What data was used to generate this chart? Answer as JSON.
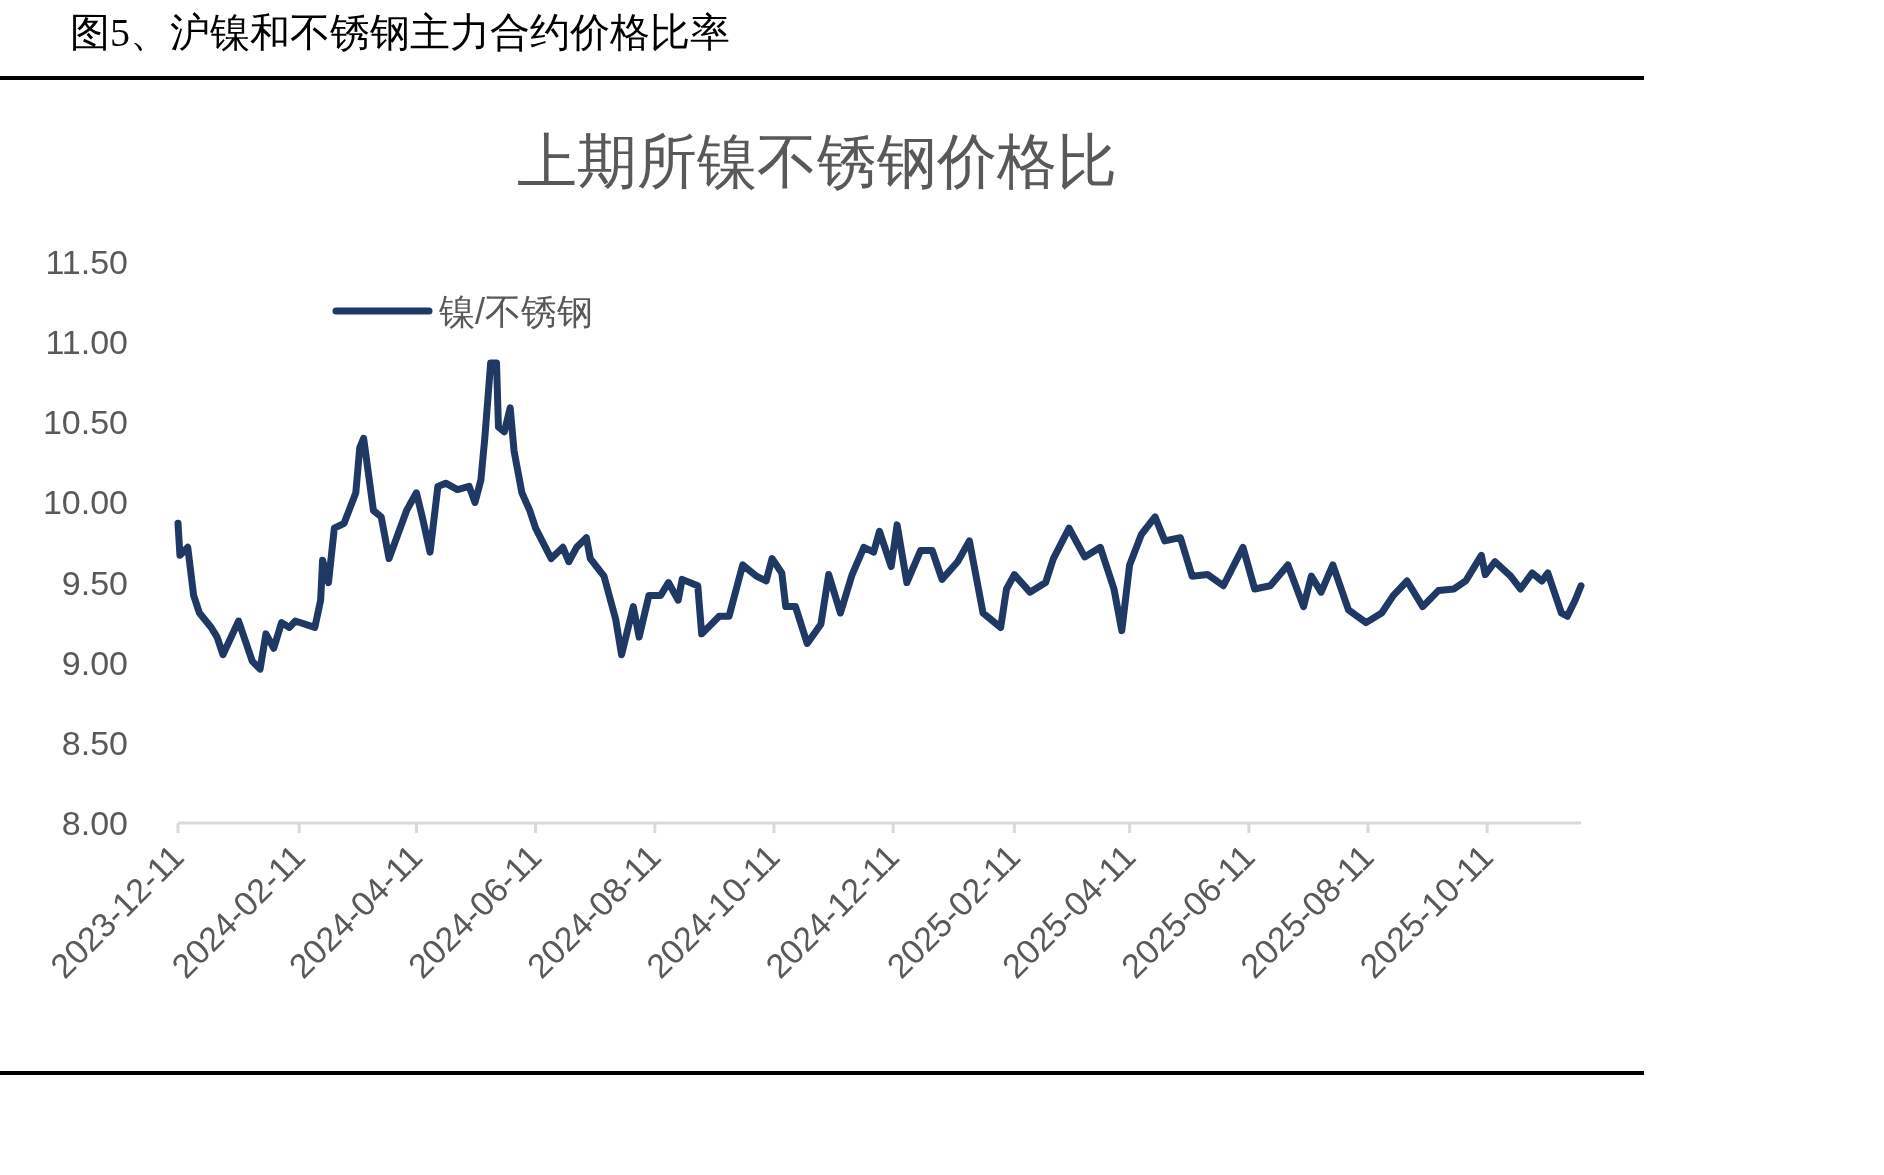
{
  "chart_data": {
    "type": "line",
    "title": "图5、沪镍和不锈钢主力合约价格比率",
    "subtitle": "上期所镍不锈钢价格比",
    "legend": "top left",
    "x": [
      "2023-12-11",
      "2023-12-12",
      "2023-12-16",
      "2023-12-19",
      "2023-12-22",
      "2023-12-28",
      "2023-12-31",
      "2024-01-03",
      "2024-01-11",
      "2024-01-18",
      "2024-01-22",
      "2024-01-25",
      "2024-01-29",
      "2024-02-02",
      "2024-02-06",
      "2024-02-09",
      "2024-02-19",
      "2024-02-22",
      "2024-02-23",
      "2024-02-26",
      "2024-02-29",
      "2024-03-05",
      "2024-03-11",
      "2024-03-13",
      "2024-03-15",
      "2024-03-20",
      "2024-03-24",
      "2024-03-28",
      "2024-04-06",
      "2024-04-11",
      "2024-04-14",
      "2024-04-18",
      "2024-04-22",
      "2024-04-26",
      "2024-05-02",
      "2024-05-08",
      "2024-05-11",
      "2024-05-14",
      "2024-05-16",
      "2024-05-19",
      "2024-05-22",
      "2024-05-23",
      "2024-05-26",
      "2024-05-29",
      "2024-05-31",
      "2024-06-04",
      "2024-06-08",
      "2024-06-11",
      "2024-06-19",
      "2024-06-25",
      "2024-06-28",
      "2024-07-02",
      "2024-07-07",
      "2024-07-09",
      "2024-07-16",
      "2024-07-22",
      "2024-07-25",
      "2024-07-31",
      "2024-08-03",
      "2024-08-08",
      "2024-08-14",
      "2024-08-18",
      "2024-08-23",
      "2024-08-25",
      "2024-09-02",
      "2024-09-04",
      "2024-09-13",
      "2024-09-18",
      "2024-09-25",
      "2024-10-02",
      "2024-10-07",
      "2024-10-10",
      "2024-10-15",
      "2024-10-17",
      "2024-10-22",
      "2024-10-28",
      "2024-11-04",
      "2024-11-08",
      "2024-11-14",
      "2024-11-20",
      "2024-11-26",
      "2024-12-01",
      "2024-12-04",
      "2024-12-10",
      "2024-12-13",
      "2024-12-18",
      "2024-12-25",
      "2024-12-31",
      "2025-01-05",
      "2025-01-13",
      "2025-01-19",
      "2025-01-26",
      "2025-02-04",
      "2025-02-07",
      "2025-02-11",
      "2025-02-19",
      "2025-02-27",
      "2025-03-03",
      "2025-03-11",
      "2025-03-19",
      "2025-03-27",
      "2025-04-03",
      "2025-04-07",
      "2025-04-11",
      "2025-04-17",
      "2025-04-24",
      "2025-04-29",
      "2025-05-07",
      "2025-05-13",
      "2025-05-21",
      "2025-05-29",
      "2025-06-08",
      "2025-06-14",
      "2025-06-22",
      "2025-07-01",
      "2025-07-09",
      "2025-07-13",
      "2025-07-18",
      "2025-07-24",
      "2025-08-01",
      "2025-08-10",
      "2025-08-18",
      "2025-08-24",
      "2025-08-31",
      "2025-09-08",
      "2025-09-16",
      "2025-09-24",
      "2025-09-30",
      "2025-10-08",
      "2025-10-10",
      "2025-10-15",
      "2025-10-23",
      "2025-10-28",
      "2025-11-03",
      "2025-11-08",
      "2025-11-11",
      "2025-11-18",
      "2025-11-21",
      "2025-11-25",
      "2025-11-28"
    ],
    "series": [
      {
        "name": "镍/不锈钢",
        "color": "#203864",
        "values": [
          9.87,
          9.67,
          9.72,
          9.42,
          9.31,
          9.22,
          9.16,
          9.05,
          9.26,
          9.01,
          8.96,
          9.18,
          9.09,
          9.25,
          9.22,
          9.26,
          9.22,
          9.39,
          9.64,
          9.5,
          9.84,
          9.87,
          10.06,
          10.34,
          10.4,
          9.95,
          9.91,
          9.65,
          9.95,
          10.06,
          9.91,
          9.69,
          10.1,
          10.12,
          10.08,
          10.1,
          10.0,
          10.14,
          10.4,
          10.87,
          10.87,
          10.47,
          10.44,
          10.59,
          10.32,
          10.06,
          9.95,
          9.84,
          9.65,
          9.72,
          9.63,
          9.72,
          9.78,
          9.65,
          9.54,
          9.27,
          9.05,
          9.35,
          9.16,
          9.42,
          9.42,
          9.5,
          9.39,
          9.52,
          9.48,
          9.18,
          9.29,
          9.29,
          9.61,
          9.54,
          9.51,
          9.65,
          9.56,
          9.35,
          9.35,
          9.12,
          9.24,
          9.55,
          9.31,
          9.55,
          9.72,
          9.69,
          9.82,
          9.6,
          9.86,
          9.5,
          9.7,
          9.7,
          9.52,
          9.63,
          9.76,
          9.31,
          9.22,
          9.46,
          9.55,
          9.44,
          9.5,
          9.65,
          9.84,
          9.66,
          9.72,
          9.46,
          9.2,
          9.61,
          9.8,
          9.91,
          9.76,
          9.78,
          9.54,
          9.55,
          9.48,
          9.72,
          9.46,
          9.48,
          9.61,
          9.35,
          9.54,
          9.44,
          9.61,
          9.33,
          9.25,
          9.31,
          9.42,
          9.51,
          9.35,
          9.45,
          9.46,
          9.51,
          9.67,
          9.55,
          9.63,
          9.54,
          9.46,
          9.56,
          9.51,
          9.56,
          9.31,
          9.29,
          9.39,
          9.48
        ]
      }
    ],
    "xlim": [
      "2023-12-11",
      "2025-11-28"
    ],
    "xticks": [
      "2023-12-11",
      "2024-02-11",
      "2024-04-11",
      "2024-06-11",
      "2024-08-11",
      "2024-10-11",
      "2024-12-11",
      "2025-02-11",
      "2025-04-11",
      "2025-06-11",
      "2025-08-11",
      "2025-10-11"
    ],
    "ylim": [
      8,
      11.5
    ],
    "yticks": [
      {
        "value": 8,
        "label": "8.00"
      },
      {
        "value": 8.5,
        "label": "8.50"
      },
      {
        "value": 9,
        "label": "9.00"
      },
      {
        "value": 9.5,
        "label": "9.50"
      },
      {
        "value": 10,
        "label": "10.00"
      },
      {
        "value": 10.5,
        "label": "10.50"
      },
      {
        "value": 11,
        "label": "11.00"
      },
      {
        "value": 11.5,
        "label": "11.50"
      }
    ]
  }
}
